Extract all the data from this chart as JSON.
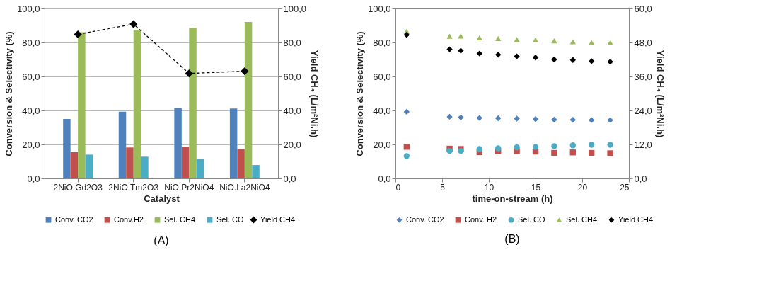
{
  "chart_data": [
    {
      "type": "bar",
      "xlabel": "Catalyst",
      "ylabel": "Conversion & Selectivity (%)",
      "y2label": "Yield CH₄ (L/m²Ni.h)",
      "categories": [
        "2NiO.Gd2O3",
        "2NiO.Tm2O3",
        "NiO.Pr2NiO4",
        "NiO.La2NiO4"
      ],
      "series": [
        {
          "name": "Conv. CO2",
          "color": "#4f81bd",
          "values": [
            35.0,
            39.3,
            41.5,
            41.1
          ]
        },
        {
          "name": "Conv.H2",
          "color": "#c0504d",
          "values": [
            15.5,
            18.2,
            18.5,
            17.3
          ]
        },
        {
          "name": "Sel. CH4",
          "color": "#9bbb59",
          "values": [
            86.0,
            87.5,
            88.6,
            92.1
          ]
        },
        {
          "name": "Sel. CO",
          "color": "#4bacc6",
          "values": [
            14.0,
            12.8,
            11.5,
            7.9
          ]
        },
        {
          "name": "Yield CH4",
          "color": "#000000",
          "type": "line",
          "axis": "y2",
          "marker": "diamond",
          "line_style": "dashed",
          "values": [
            84.8,
            90.8,
            61.8,
            63.1
          ]
        }
      ],
      "ylim": [
        0,
        100
      ],
      "yticks": [
        {
          "value": 0,
          "label": "0,0"
        },
        {
          "value": 20,
          "label": "20,0"
        },
        {
          "value": 40,
          "label": "40,0"
        },
        {
          "value": 60,
          "label": "60,0"
        },
        {
          "value": 80,
          "label": "80,0"
        },
        {
          "value": 100,
          "label": "100,0"
        }
      ],
      "y2lim": [
        0,
        100
      ],
      "y2ticks": [
        {
          "value": 0,
          "label": "0,0"
        },
        {
          "value": 20,
          "label": "20,0"
        },
        {
          "value": 40,
          "label": "40,0"
        },
        {
          "value": 60,
          "label": "60,0"
        },
        {
          "value": 80,
          "label": "80,0"
        },
        {
          "value": 100,
          "label": "100,0"
        }
      ],
      "grid": "y",
      "legend": "bottom",
      "annotations": [
        "(A)"
      ]
    },
    {
      "type": "scatter",
      "xlabel": "time-on-stream (h)",
      "ylabel": "Conversion & Selectivity (%)",
      "y2label": "Yield CH₄ (L/m²Ni.h)",
      "x": [
        1.2,
        5.8,
        7,
        9,
        11,
        13,
        15,
        17,
        19,
        21,
        23
      ],
      "series": [
        {
          "name": "Conv. CO2",
          "color": "#4f81bd",
          "marker": "diamond",
          "values": [
            39.2,
            36.3,
            35.9,
            35.6,
            35.4,
            35.2,
            34.9,
            34.6,
            34.5,
            34.3,
            34.3
          ]
        },
        {
          "name": "Conv. H2",
          "color": "#c0504d",
          "marker": "square",
          "values": [
            18.6,
            17.5,
            17.3,
            15.5,
            16.0,
            16.0,
            15.8,
            15.0,
            15.3,
            15.0,
            14.8
          ]
        },
        {
          "name": "Sel. CO",
          "color": "#4bacc6",
          "marker": "circle",
          "values": [
            13.2,
            16.2,
            16.2,
            17.3,
            17.7,
            18.3,
            18.5,
            19.0,
            19.5,
            19.8,
            19.8
          ]
        },
        {
          "name": "Sel. CH4",
          "color": "#9bbb59",
          "marker": "triangle",
          "values": [
            86.5,
            83.7,
            83.8,
            82.8,
            82.3,
            81.7,
            81.5,
            81.0,
            80.5,
            80.0,
            80.0
          ]
        },
        {
          "name": "Yield CH4",
          "color": "#000000",
          "marker": "diamond",
          "axis": "y2",
          "values": [
            50.7,
            45.6,
            45.1,
            44.1,
            43.7,
            43.1,
            42.7,
            42.0,
            41.8,
            41.4,
            41.2
          ]
        }
      ],
      "xlim": [
        0,
        25
      ],
      "xticks": [
        0,
        5,
        10,
        15,
        20,
        25
      ],
      "ylim": [
        0,
        100
      ],
      "yticks": [
        {
          "value": 0,
          "label": "0,0"
        },
        {
          "value": 20,
          "label": "20,0"
        },
        {
          "value": 40,
          "label": "40,0"
        },
        {
          "value": 60,
          "label": "60,0"
        },
        {
          "value": 80,
          "label": "80,0"
        },
        {
          "value": 100,
          "label": "100,0"
        }
      ],
      "y2lim": [
        0,
        60
      ],
      "y2ticks": [
        {
          "value": 0,
          "label": "0,0"
        },
        {
          "value": 12,
          "label": "12,0"
        },
        {
          "value": 24,
          "label": "24,0"
        },
        {
          "value": 36,
          "label": "36,0"
        },
        {
          "value": 48,
          "label": "48,0"
        },
        {
          "value": 60,
          "label": "60,0"
        }
      ],
      "grid": false,
      "legend": "bottom",
      "annotations": [
        "(B)"
      ]
    }
  ]
}
